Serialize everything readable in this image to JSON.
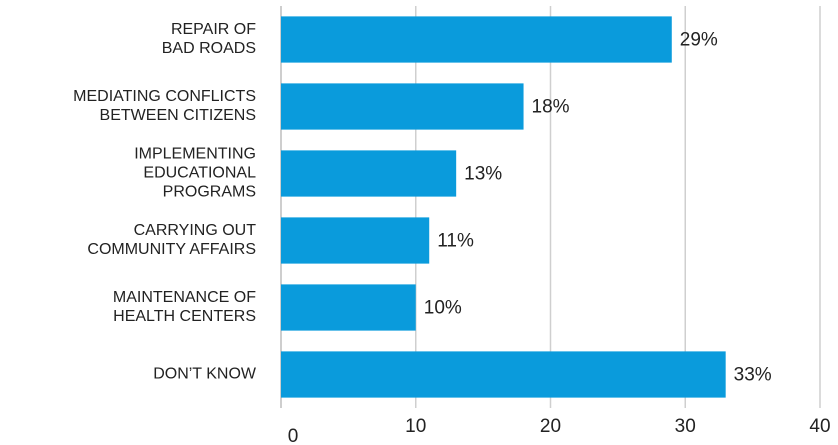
{
  "chart_data": {
    "type": "bar",
    "orientation": "horizontal",
    "categories": [
      [
        "REPAIR OF",
        "BAD ROADS"
      ],
      [
        "MEDIATING CONFLICTS",
        "BETWEEN CITIZENS"
      ],
      [
        "IMPLEMENTING",
        "EDUCATIONAL",
        "PROGRAMS"
      ],
      [
        "CARRYING OUT",
        "COMMUNITY AFFAIRS"
      ],
      [
        "MAINTENANCE OF",
        "HEALTH CENTERS"
      ],
      [
        "DON’T KNOW"
      ]
    ],
    "values": [
      29,
      18,
      13,
      11,
      10,
      33
    ],
    "data_labels": [
      "29%",
      "18%",
      "13%",
      "11%",
      "10%",
      "33%"
    ],
    "xlim": [
      0,
      40
    ],
    "xticks": [
      0,
      10,
      20,
      30,
      40
    ],
    "xtick_labels": [
      "0",
      "10",
      "20",
      "30",
      "40"
    ],
    "grid": "vertical",
    "bar_color": "#0a9bdc",
    "title": "",
    "xlabel": "",
    "ylabel": ""
  }
}
